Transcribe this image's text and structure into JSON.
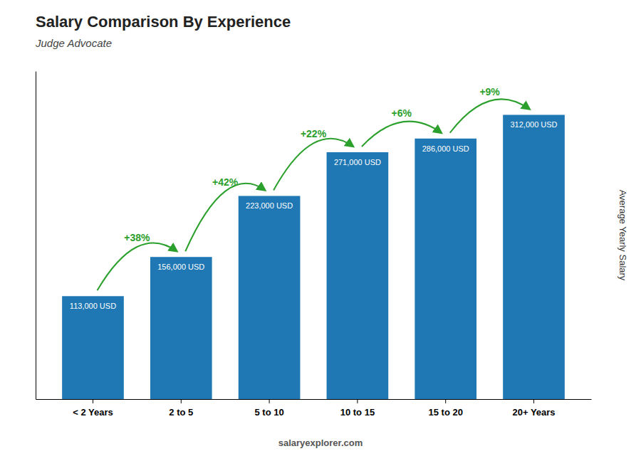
{
  "chart_data": {
    "type": "bar",
    "title": "Salary Comparison By Experience",
    "subtitle": "Judge Advocate",
    "categories": [
      "< 2 Years",
      "2 to 5",
      "5 to 10",
      "10 to 15",
      "15 to 20",
      "20+ Years"
    ],
    "values": [
      113000,
      156000,
      223000,
      271000,
      286000,
      312000
    ],
    "value_labels": [
      "113,000 USD",
      "156,000 USD",
      "223,000 USD",
      "271,000 USD",
      "286,000 USD",
      "312,000 USD"
    ],
    "data_labels": true,
    "annotations": [
      "+38%",
      "+42%",
      "+22%",
      "+6%",
      "+9%"
    ],
    "ylabel": "Average Yearly Salary",
    "footer": "salaryexplorer.com",
    "ylim": [
      0,
      360000
    ],
    "tick_labels": "x",
    "grid": false
  }
}
